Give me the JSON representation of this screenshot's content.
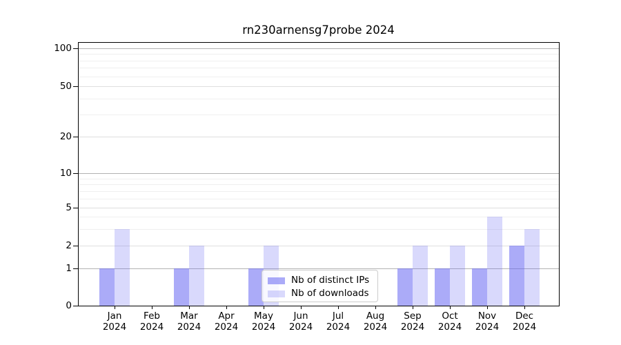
{
  "title": "rn230arnensg7probe 2024",
  "chart_data": {
    "type": "bar",
    "title": "rn230arnensg7probe 2024",
    "categories": [
      {
        "month": "Jan",
        "year": "2024"
      },
      {
        "month": "Feb",
        "year": "2024"
      },
      {
        "month": "Mar",
        "year": "2024"
      },
      {
        "month": "Apr",
        "year": "2024"
      },
      {
        "month": "May",
        "year": "2024"
      },
      {
        "month": "Jun",
        "year": "2024"
      },
      {
        "month": "Jul",
        "year": "2024"
      },
      {
        "month": "Aug",
        "year": "2024"
      },
      {
        "month": "Sep",
        "year": "2024"
      },
      {
        "month": "Oct",
        "year": "2024"
      },
      {
        "month": "Nov",
        "year": "2024"
      },
      {
        "month": "Dec",
        "year": "2024"
      }
    ],
    "series": [
      {
        "name": "Nb of distinct IPs",
        "color": "rgba(102,102,242,0.55)",
        "values": [
          1,
          0,
          1,
          0,
          1,
          0,
          0,
          0,
          1,
          1,
          1,
          2
        ]
      },
      {
        "name": "Nb of downloads",
        "color": "rgba(102,102,242,0.25)",
        "values": [
          3,
          0,
          2,
          0,
          2,
          0,
          0,
          0,
          2,
          2,
          4,
          3
        ]
      }
    ],
    "y_axis": {
      "scale": "log above 1, linear 0-1",
      "labeled_ticks": [
        0,
        1,
        2,
        5,
        10,
        20,
        50,
        100
      ],
      "decade_gridlines": [
        1,
        10,
        100
      ],
      "mid_gridlines": [
        2,
        5,
        20,
        50
      ],
      "minor_gridlines": [
        3,
        4,
        6,
        7,
        8,
        9,
        30,
        40,
        60,
        70,
        80,
        90
      ]
    },
    "xlabel": "",
    "ylabel": "",
    "grid": true,
    "legend_position": "bottom-center"
  }
}
